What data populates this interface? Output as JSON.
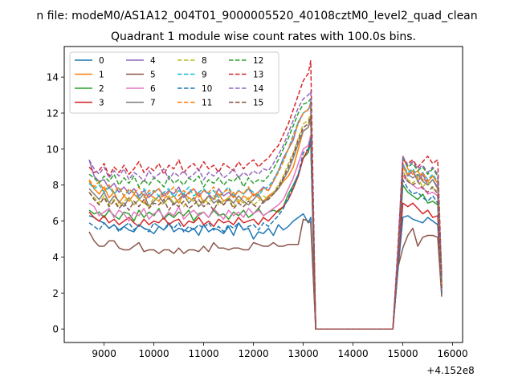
{
  "chart_data": {
    "type": "line",
    "suptitle": "n file: modeM0/AS1A12_004T01_9000005520_40108cztM0_level2_quad_clean",
    "title": "Quadrant 1 module wise count rates with 100.0s bins.",
    "xlabel": "",
    "ylabel": "",
    "x_offset_label": "+4.152e8",
    "xlim": [
      8200,
      16200
    ],
    "ylim": [
      -0.75,
      15.7
    ],
    "xticks": [
      9000,
      10000,
      11000,
      12000,
      13000,
      14000,
      15000,
      16000
    ],
    "yticks": [
      0,
      2,
      4,
      6,
      8,
      10,
      12,
      14
    ],
    "grid": false,
    "legend_position": "top-left",
    "legend_columns": 4,
    "x": [
      8700,
      8800,
      8900,
      9000,
      9100,
      9200,
      9300,
      9400,
      9500,
      9600,
      9700,
      9800,
      9900,
      10000,
      10100,
      10200,
      10300,
      10400,
      10500,
      10600,
      10700,
      10800,
      10900,
      11000,
      11100,
      11200,
      11300,
      11400,
      11500,
      11600,
      11700,
      11800,
      11900,
      12000,
      12100,
      12200,
      12300,
      12400,
      12500,
      12600,
      12700,
      12800,
      12900,
      13000,
      13100,
      13150,
      13250,
      13400,
      13600,
      13800,
      14000,
      14200,
      14400,
      14600,
      14800,
      14900,
      15000,
      15100,
      15200,
      15300,
      15400,
      15500,
      15600,
      15700,
      15780
    ],
    "series": [
      {
        "name": "0",
        "color": "#1f77b4",
        "dashed": false,
        "values": [
          6.3,
          6.2,
          6.0,
          5.9,
          5.6,
          5.8,
          5.5,
          5.7,
          5.5,
          5.4,
          5.8,
          5.6,
          5.5,
          5.3,
          5.7,
          5.5,
          5.9,
          5.4,
          5.6,
          5.5,
          5.4,
          5.6,
          5.2,
          5.8,
          5.4,
          5.6,
          5.5,
          5.3,
          5.7,
          5.2,
          5.9,
          5.5,
          5.6,
          5.0,
          5.4,
          5.3,
          5.6,
          5.2,
          5.8,
          5.5,
          5.7,
          6.0,
          6.2,
          6.4,
          5.9,
          6.2,
          0,
          0,
          0,
          0,
          0,
          0,
          0,
          0,
          0,
          3.2,
          6.2,
          6.3,
          6.1,
          6.0,
          5.9,
          6.2,
          6.0,
          5.8,
          2.2
        ]
      },
      {
        "name": "1",
        "color": "#ff7f0e",
        "dashed": false,
        "values": [
          8.2,
          7.8,
          7.5,
          7.9,
          7.3,
          7.6,
          7.0,
          7.4,
          7.1,
          7.5,
          7.2,
          7.0,
          7.5,
          7.3,
          7.1,
          7.6,
          7.2,
          7.4,
          7.0,
          7.5,
          7.3,
          7.1,
          7.6,
          7.0,
          7.4,
          7.2,
          7.5,
          7.1,
          7.3,
          7.6,
          7.0,
          7.4,
          7.2,
          7.5,
          7.3,
          7.1,
          7.4,
          7.6,
          7.8,
          8.2,
          8.5,
          9.0,
          10.0,
          11.0,
          11.2,
          11.8,
          0,
          0,
          0,
          0,
          0,
          0,
          0,
          0,
          0,
          3.8,
          9.6,
          8.9,
          8.6,
          8.8,
          8.3,
          8.2,
          8.5,
          8.1,
          2.5
        ]
      },
      {
        "name": "2",
        "color": "#2ca02c",
        "dashed": false,
        "values": [
          6.6,
          6.4,
          6.5,
          6.2,
          6.6,
          6.3,
          6.1,
          6.5,
          6.4,
          6.0,
          6.6,
          6.2,
          6.5,
          6.3,
          6.7,
          6.1,
          6.4,
          6.2,
          6.5,
          6.3,
          6.6,
          6.0,
          6.4,
          6.5,
          6.2,
          6.6,
          6.3,
          6.4,
          6.1,
          6.5,
          6.3,
          6.6,
          6.2,
          6.4,
          6.7,
          6.3,
          6.5,
          6.6,
          6.5,
          6.8,
          7.5,
          8.0,
          8.6,
          9.5,
          9.8,
          10.4,
          0,
          0,
          0,
          0,
          0,
          0,
          0,
          0,
          0,
          3.6,
          8.0,
          7.6,
          7.4,
          7.2,
          7.5,
          7.0,
          7.1,
          6.9,
          2.1
        ]
      },
      {
        "name": "3",
        "color": "#d62728",
        "dashed": false,
        "values": [
          6.5,
          6.2,
          6.0,
          6.3,
          5.9,
          6.1,
          5.8,
          6.0,
          6.2,
          5.9,
          5.7,
          6.1,
          5.8,
          6.0,
          5.9,
          6.2,
          5.8,
          6.0,
          6.1,
          5.7,
          6.0,
          5.9,
          6.2,
          5.8,
          6.0,
          5.7,
          6.1,
          5.9,
          6.0,
          5.8,
          6.2,
          5.9,
          6.0,
          6.1,
          5.8,
          6.2,
          6.0,
          6.3,
          6.6,
          6.8,
          7.2,
          7.8,
          8.5,
          9.5,
          10.0,
          10.5,
          0,
          0,
          0,
          0,
          0,
          0,
          0,
          0,
          0,
          3.4,
          7.0,
          6.8,
          7.0,
          6.7,
          6.4,
          6.6,
          6.2,
          6.3,
          1.9
        ]
      },
      {
        "name": "4",
        "color": "#9467bd",
        "dashed": false,
        "values": [
          9.4,
          8.5,
          8.2,
          8.3,
          7.8,
          8.1,
          7.6,
          7.9,
          7.5,
          7.8,
          7.4,
          7.7,
          7.3,
          7.6,
          7.8,
          7.4,
          7.7,
          7.5,
          7.9,
          7.3,
          7.6,
          7.8,
          7.4,
          7.7,
          7.5,
          7.2,
          7.8,
          7.4,
          7.6,
          7.3,
          7.7,
          7.5,
          7.8,
          7.4,
          7.6,
          7.9,
          7.7,
          8.2,
          8.8,
          9.5,
          10.0,
          10.5,
          11.5,
          12.0,
          12.2,
          12.4,
          0,
          0,
          0,
          0,
          0,
          0,
          0,
          0,
          0,
          4.0,
          9.2,
          8.5,
          8.8,
          8.2,
          8.6,
          8.0,
          8.3,
          7.9,
          2.4
        ]
      },
      {
        "name": "5",
        "color": "#8c564b",
        "dashed": false,
        "values": [
          5.4,
          4.9,
          4.6,
          4.6,
          4.9,
          4.9,
          4.5,
          4.4,
          4.4,
          4.6,
          4.8,
          4.3,
          4.4,
          4.4,
          4.2,
          4.4,
          4.4,
          4.2,
          4.5,
          4.2,
          4.4,
          4.4,
          4.3,
          4.6,
          4.3,
          4.8,
          4.5,
          4.5,
          4.4,
          4.5,
          4.5,
          4.4,
          4.4,
          4.8,
          4.7,
          4.6,
          4.6,
          4.8,
          4.6,
          4.6,
          4.7,
          4.7,
          4.7,
          6.1,
          6.0,
          5.9,
          0,
          0,
          0,
          0,
          0,
          0,
          0,
          0,
          0,
          3.4,
          4.5,
          5.2,
          5.6,
          4.6,
          5.1,
          5.2,
          5.2,
          5.1,
          1.8
        ]
      },
      {
        "name": "6",
        "color": "#e377c2",
        "dashed": false,
        "values": [
          7.0,
          6.8,
          6.3,
          6.5,
          6.7,
          6.2,
          6.6,
          6.4,
          6.0,
          6.5,
          6.3,
          6.7,
          6.1,
          6.4,
          6.6,
          6.2,
          6.5,
          6.3,
          6.8,
          6.1,
          6.4,
          6.6,
          6.3,
          6.5,
          6.2,
          6.7,
          6.4,
          6.1,
          6.6,
          6.3,
          6.5,
          6.2,
          6.7,
          6.4,
          6.6,
          6.3,
          6.5,
          6.7,
          6.9,
          7.2,
          7.8,
          8.4,
          9.2,
          10.0,
          10.2,
          10.8,
          0,
          0,
          0,
          0,
          0,
          0,
          0,
          0,
          0,
          3.5,
          8.5,
          8.2,
          8.0,
          7.8,
          7.9,
          7.5,
          7.6,
          7.4,
          2.2
        ]
      },
      {
        "name": "7",
        "color": "#7f7f7f",
        "dashed": false,
        "values": [
          7.8,
          7.5,
          7.2,
          7.6,
          7.0,
          7.4,
          7.1,
          6.8,
          7.3,
          6.9,
          7.2,
          7.5,
          6.8,
          7.1,
          7.4,
          7.0,
          7.3,
          6.9,
          7.2,
          7.5,
          7.0,
          7.3,
          6.8,
          7.1,
          7.4,
          7.0,
          7.2,
          6.9,
          7.3,
          7.0,
          7.4,
          7.1,
          6.9,
          7.2,
          7.5,
          7.0,
          7.3,
          7.5,
          7.8,
          8.3,
          8.8,
          9.5,
          10.3,
          11.0,
          11.2,
          11.6,
          0,
          0,
          0,
          0,
          0,
          0,
          0,
          0,
          0,
          3.7,
          9.0,
          8.6,
          8.4,
          8.6,
          8.2,
          8.0,
          8.3,
          7.8,
          2.3
        ]
      },
      {
        "name": "8",
        "color": "#bcbd22",
        "dashed": true,
        "values": [
          7.6,
          7.3,
          7.0,
          7.4,
          6.9,
          7.2,
          6.8,
          7.1,
          7.3,
          6.9,
          7.2,
          7.0,
          6.8,
          7.3,
          7.1,
          6.9,
          7.4,
          7.0,
          7.2,
          6.8,
          7.3,
          7.1,
          6.9,
          7.2,
          7.0,
          7.4,
          6.9,
          7.1,
          7.3,
          6.8,
          7.2,
          7.0,
          7.3,
          6.9,
          7.1,
          7.4,
          7.2,
          7.6,
          8.0,
          8.5,
          9.2,
          9.8,
          10.6,
          11.4,
          11.6,
          12.0,
          0,
          0,
          0,
          0,
          0,
          0,
          0,
          0,
          0,
          3.9,
          8.8,
          8.3,
          8.1,
          8.4,
          7.9,
          8.2,
          7.8,
          7.7,
          2.4
        ]
      },
      {
        "name": "9",
        "color": "#17becf",
        "dashed": true,
        "values": [
          8.1,
          7.8,
          8.0,
          7.6,
          7.9,
          7.5,
          7.8,
          7.4,
          7.7,
          7.6,
          7.3,
          7.8,
          7.5,
          7.7,
          7.4,
          7.6,
          7.8,
          7.3,
          7.7,
          7.5,
          7.9,
          7.4,
          7.6,
          7.8,
          7.5,
          7.7,
          7.3,
          7.6,
          7.9,
          7.4,
          7.7,
          7.5,
          7.8,
          7.6,
          7.4,
          7.8,
          7.9,
          8.3,
          8.8,
          9.4,
          10.0,
          10.8,
          11.5,
          12.0,
          12.2,
          12.6,
          0,
          0,
          0,
          0,
          0,
          0,
          0,
          0,
          0,
          4.1,
          9.1,
          8.7,
          8.9,
          8.5,
          8.7,
          8.3,
          8.6,
          8.2,
          2.6
        ]
      },
      {
        "name": "10",
        "color": "#1f77b4",
        "dashed": true,
        "values": [
          5.9,
          5.7,
          5.5,
          5.9,
          5.6,
          5.8,
          5.4,
          5.7,
          5.9,
          5.5,
          5.8,
          5.6,
          5.4,
          5.9,
          5.7,
          5.5,
          5.8,
          5.6,
          5.9,
          5.4,
          5.7,
          5.5,
          5.8,
          5.6,
          5.9,
          5.5,
          5.7,
          5.4,
          5.8,
          5.6,
          5.9,
          5.5,
          5.7,
          5.8,
          5.5,
          5.9,
          5.7,
          6.0,
          6.3,
          6.7,
          7.3,
          7.9,
          8.6,
          9.8,
          10.0,
          10.6,
          0,
          0,
          0,
          0,
          0,
          0,
          0,
          0,
          0,
          3.3,
          8.3,
          7.8,
          7.5,
          7.6,
          7.3,
          7.1,
          7.4,
          7.0,
          2.0
        ]
      },
      {
        "name": "11",
        "color": "#ff7f0e",
        "dashed": true,
        "values": [
          8.3,
          7.9,
          8.2,
          7.7,
          8.0,
          7.6,
          7.9,
          7.4,
          7.8,
          7.5,
          7.9,
          7.3,
          7.7,
          7.6,
          7.8,
          7.2,
          7.6,
          7.9,
          7.4,
          7.7,
          7.5,
          7.8,
          7.3,
          7.7,
          7.6,
          7.9,
          7.4,
          7.6,
          7.8,
          7.3,
          7.7,
          7.5,
          7.9,
          7.4,
          7.6,
          7.8,
          7.7,
          8.2,
          8.7,
          9.3,
          10.0,
          10.7,
          11.4,
          12.0,
          12.2,
          12.5,
          0,
          0,
          0,
          0,
          0,
          0,
          0,
          0,
          0,
          4.0,
          9.0,
          8.6,
          8.8,
          8.4,
          8.7,
          8.2,
          8.5,
          8.1,
          2.5
        ]
      },
      {
        "name": "12",
        "color": "#2ca02c",
        "dashed": true,
        "values": [
          8.6,
          8.4,
          8.1,
          8.5,
          8.2,
          8.6,
          8.0,
          8.4,
          8.1,
          8.5,
          7.9,
          8.3,
          8.0,
          8.4,
          8.2,
          7.9,
          8.5,
          8.1,
          8.3,
          8.0,
          8.4,
          8.2,
          8.5,
          7.9,
          8.3,
          8.1,
          8.4,
          8.0,
          8.3,
          8.2,
          8.5,
          7.9,
          8.4,
          8.1,
          8.3,
          8.2,
          8.5,
          8.9,
          9.4,
          10.0,
          10.6,
          11.3,
          12.0,
          12.5,
          12.6,
          12.8,
          0,
          0,
          0,
          0,
          0,
          0,
          0,
          0,
          0,
          4.3,
          9.5,
          9.0,
          9.2,
          8.8,
          9.0,
          8.6,
          8.9,
          8.5,
          2.8
        ]
      },
      {
        "name": "13",
        "color": "#d62728",
        "dashed": true,
        "values": [
          9.0,
          8.7,
          8.8,
          9.2,
          8.5,
          9.0,
          8.7,
          9.1,
          8.6,
          8.9,
          9.3,
          8.7,
          9.0,
          8.8,
          9.2,
          8.6,
          9.1,
          8.9,
          9.4,
          8.7,
          9.0,
          9.2,
          8.8,
          9.3,
          8.9,
          9.1,
          8.7,
          9.2,
          9.0,
          8.8,
          9.3,
          8.9,
          9.2,
          9.4,
          9.0,
          9.3,
          9.5,
          9.9,
          10.2,
          10.8,
          11.4,
          12.2,
          13.0,
          13.8,
          14.2,
          14.9,
          0,
          0,
          0,
          0,
          0,
          0,
          0,
          0,
          0,
          4.5,
          9.4,
          9.2,
          9.4,
          9.0,
          9.3,
          9.6,
          9.2,
          9.4,
          2.9
        ]
      },
      {
        "name": "14",
        "color": "#9467bd",
        "dashed": true,
        "values": [
          9.4,
          8.9,
          8.6,
          9.0,
          8.4,
          8.8,
          8.5,
          8.9,
          8.3,
          8.7,
          8.5,
          8.2,
          8.8,
          8.4,
          8.6,
          8.9,
          8.3,
          8.7,
          8.5,
          8.8,
          8.4,
          8.6,
          8.9,
          8.3,
          8.7,
          8.5,
          8.8,
          8.4,
          8.6,
          8.9,
          8.4,
          8.7,
          8.5,
          8.8,
          8.6,
          8.9,
          8.8,
          9.2,
          9.7,
          10.2,
          10.9,
          11.6,
          12.3,
          12.8,
          13.0,
          13.2,
          0,
          0,
          0,
          0,
          0,
          0,
          0,
          0,
          0,
          4.4,
          9.6,
          9.1,
          9.3,
          8.9,
          9.1,
          8.7,
          9.0,
          8.6,
          2.8
        ]
      },
      {
        "name": "15",
        "color": "#8c564b",
        "dashed": true,
        "values": [
          7.6,
          7.2,
          6.9,
          7.3,
          6.8,
          7.1,
          6.7,
          7.0,
          6.6,
          7.1,
          6.8,
          7.2,
          6.7,
          7.0,
          6.9,
          7.2,
          6.6,
          7.0,
          6.8,
          7.1,
          6.7,
          6.9,
          7.2,
          6.8,
          7.0,
          6.6,
          7.1,
          6.9,
          7.2,
          6.7,
          7.0,
          6.8,
          7.1,
          6.9,
          6.7,
          7.1,
          7.2,
          7.5,
          7.9,
          8.4,
          9.0,
          9.7,
          10.5,
          11.2,
          11.4,
          11.8,
          0,
          0,
          0,
          0,
          0,
          0,
          0,
          0,
          0,
          3.6,
          8.7,
          8.2,
          8.0,
          8.2,
          7.8,
          7.6,
          7.9,
          7.5,
          2.3
        ]
      }
    ]
  }
}
